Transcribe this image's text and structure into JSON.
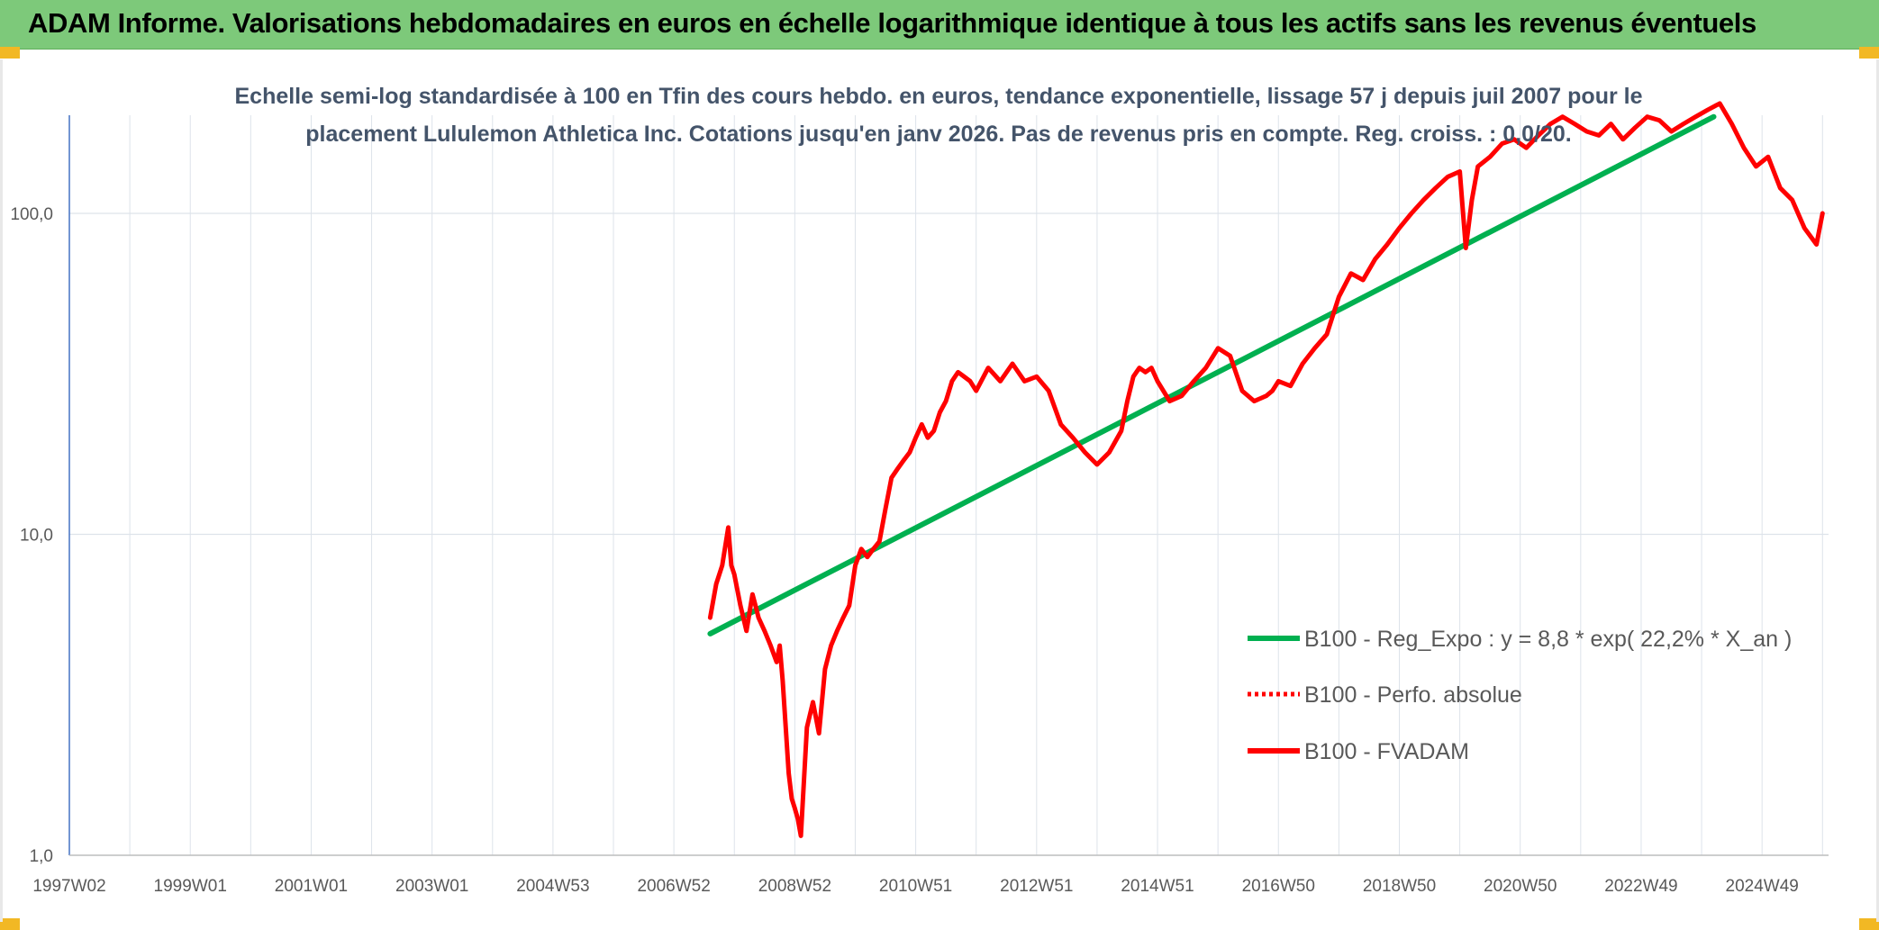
{
  "header": {
    "title": "ADAM Informe. Valorisations hebdomadaires en euros en échelle logarithmique identique à tous les actifs sans les revenus éventuels"
  },
  "colors": {
    "header_bg": "#7dc97a",
    "corner": "#f2b824",
    "regression": "#00b050",
    "fvadam": "#ff0000",
    "perfo": "#ff0000",
    "grid": "#d9d9d9",
    "title_text": "#44546a"
  },
  "chart_data": {
    "type": "line",
    "title_lines": [
      "Echelle semi-log standardisée à 100 en Tfin des cours hebdo. en euros, tendance exponentielle, lissage 57 j depuis juil 2007 pour le",
      "placement Lululemon Athletica Inc. Cotations jusqu'en janv 2026. Pas de revenus pris en compte. Reg. croiss. : 0,0/20."
    ],
    "y_scale": "log",
    "ylim": [
      1,
      200
    ],
    "y_ticks": [
      {
        "value": 1,
        "label": "1,0"
      },
      {
        "value": 10,
        "label": "10,0"
      },
      {
        "value": 100,
        "label": "100,0"
      }
    ],
    "xlim": [
      1997.0,
      2026.1
    ],
    "x_ticks": [
      {
        "t": 1997.0,
        "label": "1997W02"
      },
      {
        "t": 1999.0,
        "label": "1999W01"
      },
      {
        "t": 2001.0,
        "label": "2001W01"
      },
      {
        "t": 2003.0,
        "label": "2003W01"
      },
      {
        "t": 2005.0,
        "label": "2004W53"
      },
      {
        "t": 2007.0,
        "label": "2006W52"
      },
      {
        "t": 2009.0,
        "label": "2008W52"
      },
      {
        "t": 2011.0,
        "label": "2010W51"
      },
      {
        "t": 2013.0,
        "label": "2012W51"
      },
      {
        "t": 2015.0,
        "label": "2014W51"
      },
      {
        "t": 2017.0,
        "label": "2016W50"
      },
      {
        "t": 2019.0,
        "label": "2018W50"
      },
      {
        "t": 2021.0,
        "label": "2020W50"
      },
      {
        "t": 2023.0,
        "label": "2022W49"
      },
      {
        "t": 2025.0,
        "label": "2024W49"
      }
    ],
    "legend": {
      "placement": "lower-right",
      "entries": [
        {
          "name": "B100 - Reg_Expo : y = 8,8 * exp( 22,2% *  X_an )",
          "style": "solid-green"
        },
        {
          "name": "B100 - Perfo. absolue",
          "style": "dotted-red"
        },
        {
          "name": "B100 - FVADAM",
          "style": "solid-red"
        }
      ]
    },
    "series": [
      {
        "name": "B100 - Reg_Expo : y = 8,8 * exp( 22,2% *  X_an )",
        "x": [
          2007.6,
          2024.2
        ],
        "y": [
          4.9,
          200
        ]
      },
      {
        "name": "B100 - FVADAM",
        "x": [
          2007.6,
          2007.7,
          2007.8,
          2007.9,
          2007.95,
          2008.0,
          2008.1,
          2008.2,
          2008.3,
          2008.35,
          2008.4,
          2008.5,
          2008.6,
          2008.7,
          2008.75,
          2008.8,
          2008.85,
          2008.9,
          2008.95,
          2009.0,
          2009.05,
          2009.1,
          2009.2,
          2009.3,
          2009.4,
          2009.5,
          2009.6,
          2009.7,
          2009.8,
          2009.9,
          2010.0,
          2010.1,
          2010.2,
          2010.3,
          2010.4,
          2010.5,
          2010.6,
          2010.7,
          2010.8,
          2010.9,
          2011.0,
          2011.1,
          2011.2,
          2011.3,
          2011.4,
          2011.5,
          2011.6,
          2011.7,
          2011.8,
          2011.9,
          2012.0,
          2012.2,
          2012.4,
          2012.6,
          2012.8,
          2013.0,
          2013.2,
          2013.4,
          2013.6,
          2013.8,
          2014.0,
          2014.2,
          2014.4,
          2014.5,
          2014.6,
          2014.7,
          2014.8,
          2014.9,
          2015.0,
          2015.2,
          2015.4,
          2015.6,
          2015.8,
          2016.0,
          2016.2,
          2016.4,
          2016.6,
          2016.8,
          2016.9,
          2017.0,
          2017.2,
          2017.4,
          2017.6,
          2017.8,
          2018.0,
          2018.2,
          2018.4,
          2018.6,
          2018.8,
          2019.0,
          2019.2,
          2019.4,
          2019.6,
          2019.8,
          2020.0,
          2020.1,
          2020.2,
          2020.3,
          2020.5,
          2020.7,
          2020.9,
          2021.1,
          2021.3,
          2021.5,
          2021.7,
          2021.9,
          2022.1,
          2022.3,
          2022.5,
          2022.7,
          2022.9,
          2023.1,
          2023.3,
          2023.5,
          2023.7,
          2023.9,
          2024.1,
          2024.3,
          2024.5,
          2024.7,
          2024.9,
          2025.1,
          2025.3,
          2025.5,
          2025.7,
          2025.9,
          2026.0
        ],
        "y": [
          5.5,
          7.0,
          8.0,
          10.5,
          8.0,
          7.5,
          6.0,
          5.0,
          6.5,
          6.0,
          5.5,
          5.0,
          4.5,
          4.0,
          4.5,
          3.5,
          2.5,
          1.8,
          1.5,
          1.4,
          1.3,
          1.15,
          2.5,
          3.0,
          2.4,
          3.8,
          4.5,
          5.0,
          5.5,
          6.0,
          8.0,
          9.0,
          8.5,
          9.0,
          9.5,
          12.0,
          15.0,
          16.0,
          17.0,
          18.0,
          20.0,
          22.0,
          20.0,
          21.0,
          24.0,
          26.0,
          30.0,
          32.0,
          31.0,
          30.0,
          28.0,
          33.0,
          30.0,
          34.0,
          30.0,
          31.0,
          28.0,
          22.0,
          20.0,
          18.0,
          16.5,
          18.0,
          21.0,
          26.0,
          31.0,
          33.0,
          32.0,
          33.0,
          30.0,
          26.0,
          27.0,
          30.0,
          33.0,
          38.0,
          36.0,
          28.0,
          26.0,
          27.0,
          28.0,
          30.0,
          29.0,
          34.0,
          38.0,
          42.0,
          55.0,
          65.0,
          62.0,
          72.0,
          80.0,
          90.0,
          100.0,
          110.0,
          120.0,
          130.0,
          135.0,
          78.0,
          110.0,
          140.0,
          150.0,
          165.0,
          170.0,
          160.0,
          175.0,
          190.0,
          200.0,
          190.0,
          180.0,
          175.0,
          190.0,
          170.0,
          185.0,
          200.0,
          195.0,
          180.0,
          190.0,
          200.0,
          210.0,
          220.0,
          190.0,
          160.0,
          140.0,
          150.0,
          120.0,
          110.0,
          90.0,
          80.0,
          100.0
        ]
      }
    ]
  }
}
